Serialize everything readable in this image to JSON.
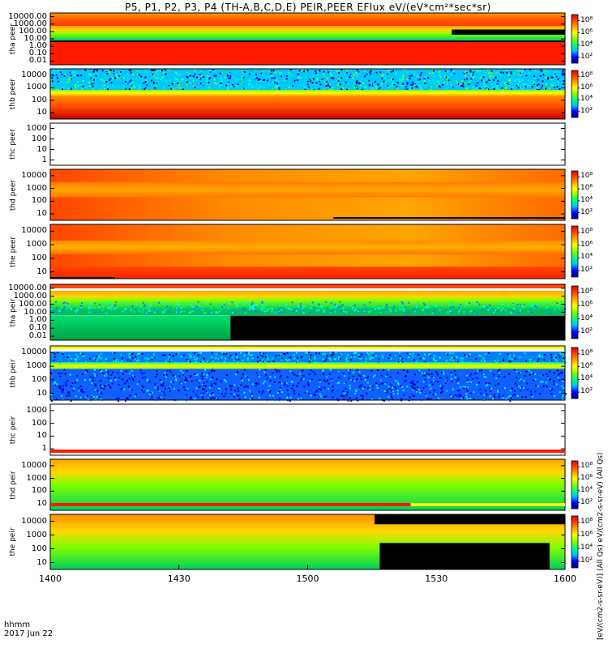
{
  "title": "P5, P1, P2, P3, P4 (TH-A,B,C,D,E) PEIR,PEER EFlux eV/(eV*cm²*sec*sr)",
  "time_label": "hhmm",
  "date_label": "2017 Jun 22",
  "unit_label": "[eV/(cm2-s-sr-eV)]  (All Qs)  eV/(cm2-s-sr-eV)  (All Qs)",
  "chart_data": {
    "type": "heatmap",
    "x_ticks": [
      "1400",
      "1430",
      "1500",
      "1530",
      "1600"
    ],
    "x_values": [
      1400,
      1430,
      1500,
      1530,
      1600
    ],
    "colorbar_ticks": [
      "10⁸",
      "10⁶",
      "10⁴",
      "10²"
    ],
    "colormap": [
      "#00008b",
      "#0000ff",
      "#00bfff",
      "#00ff80",
      "#80ff00",
      "#ffff00",
      "#ffa500",
      "#ff4500",
      "#e60000"
    ],
    "panels": [
      {
        "label": "tha peer",
        "yticks": [
          "10000.00",
          "1000.00",
          "100.00",
          "10.00",
          "1.00",
          "0.10",
          "0.01"
        ],
        "colorbar": true,
        "pattern": "tha_peer"
      },
      {
        "label": "thb peer",
        "yticks": [
          "10000",
          "1000",
          "100",
          "10"
        ],
        "colorbar": true,
        "pattern": "thb_peer"
      },
      {
        "label": "thc peer",
        "yticks": [
          "1000",
          "100",
          "10",
          "1"
        ],
        "colorbar": false,
        "pattern": "empty"
      },
      {
        "label": "thd peer",
        "yticks": [
          "10000",
          "1000",
          "100",
          "10"
        ],
        "colorbar": true,
        "pattern": "thd_peer"
      },
      {
        "label": "the peer",
        "yticks": [
          "10000",
          "1000",
          "100",
          "10"
        ],
        "colorbar": true,
        "pattern": "the_peer"
      },
      {
        "label": "tha peir",
        "yticks": [
          "10000.00",
          "1000.00",
          "100.00",
          "10.00",
          "1.00",
          "0.10",
          "0.01"
        ],
        "colorbar": true,
        "pattern": "tha_peir"
      },
      {
        "label": "thb peir",
        "yticks": [
          "10000",
          "1000",
          "100",
          "10"
        ],
        "colorbar": true,
        "pattern": "thb_peir"
      },
      {
        "label": "thc peir",
        "yticks": [
          "1000",
          "100",
          "10",
          "1"
        ],
        "colorbar": false,
        "pattern": "empty"
      },
      {
        "label": "thd peir",
        "yticks": [
          "10000",
          "1000",
          "100",
          "10"
        ],
        "colorbar": true,
        "pattern": "thd_peir"
      },
      {
        "label": "the peir",
        "yticks": [
          "10000",
          "1000",
          "100",
          "10"
        ],
        "colorbar": true,
        "pattern": "the_peir"
      }
    ]
  }
}
